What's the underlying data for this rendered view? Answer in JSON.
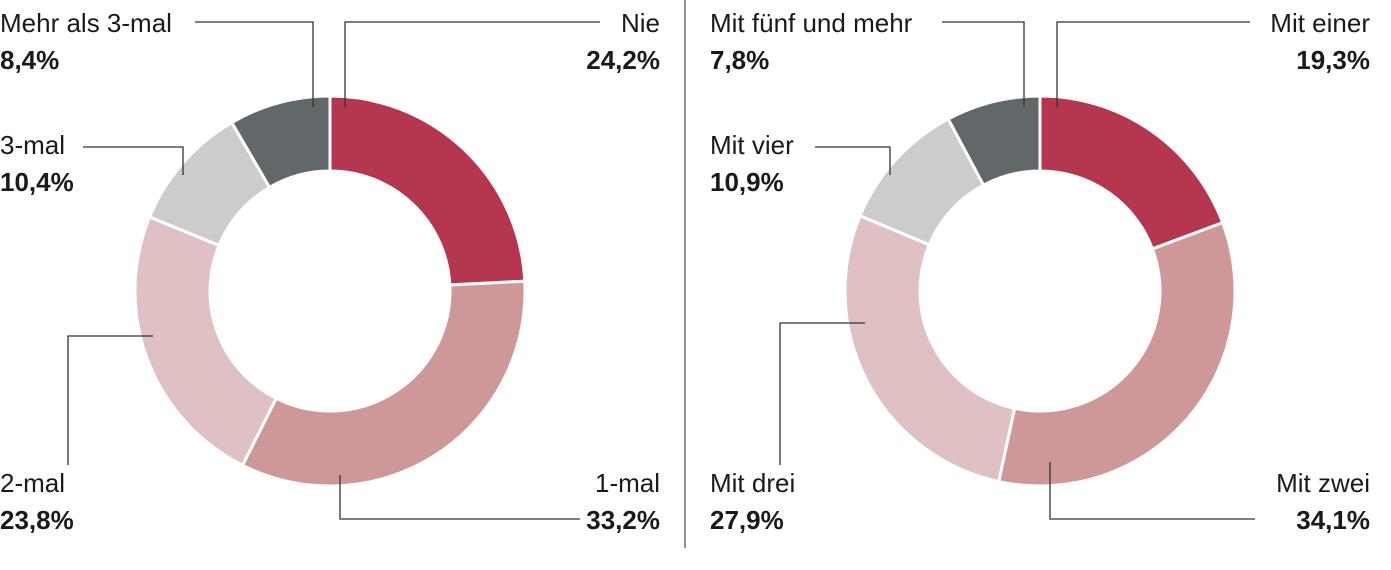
{
  "chart_data": [
    {
      "type": "donut",
      "categories": [
        "Nie",
        "1-mal",
        "2-mal",
        "3-mal",
        "Mehr als 3-mal"
      ],
      "values": [
        24.2,
        33.2,
        23.8,
        10.4,
        8.4
      ],
      "value_labels": [
        "24,2%",
        "33,2%",
        "23,8%",
        "10,4%",
        "8,4%"
      ],
      "colors": [
        "#b5364f",
        "#cf9898",
        "#e0c1c3",
        "#cccccd",
        "#62676a"
      ]
    },
    {
      "type": "donut",
      "categories": [
        "Mit einer",
        "Mit zwei",
        "Mit drei",
        "Mit vier",
        "Mit fünf und mehr"
      ],
      "values": [
        19.3,
        34.1,
        27.9,
        10.9,
        7.8
      ],
      "value_labels": [
        "19,3%",
        "34,1%",
        "27,9%",
        "10,9%",
        "7,8%"
      ],
      "colors": [
        "#b5364f",
        "#cf9898",
        "#e0c1c3",
        "#cccccd",
        "#62676a"
      ]
    }
  ]
}
